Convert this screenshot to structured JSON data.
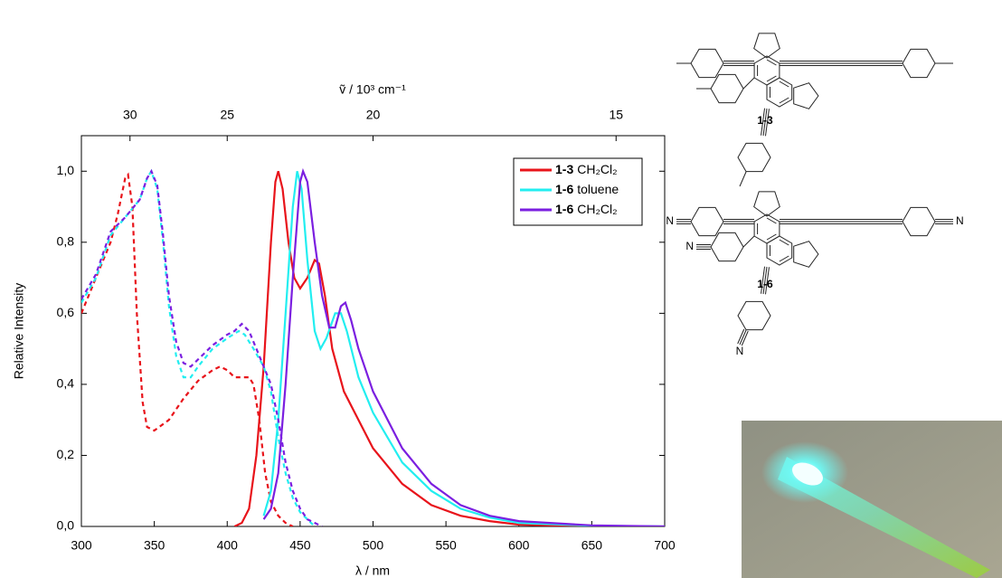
{
  "chart_data": {
    "type": "line",
    "x_label": "λ / nm",
    "y_label": "Relative Intensity",
    "x2_label": "ṽ / 10³ cm⁻¹",
    "xlim": [
      300,
      700
    ],
    "ylim": [
      0,
      1.1
    ],
    "xticks": [
      300,
      350,
      400,
      450,
      500,
      550,
      600,
      650,
      700
    ],
    "yticks": [
      {
        "value": 0,
        "label": "0,0"
      },
      {
        "value": 0.2,
        "label": "0,2"
      },
      {
        "value": 0.4,
        "label": "0,4"
      },
      {
        "value": 0.6,
        "label": "0,6"
      },
      {
        "value": 0.8,
        "label": "0,8"
      },
      {
        "value": 1.0,
        "label": "1,0"
      }
    ],
    "x2ticks": [
      30,
      25,
      20,
      15
    ],
    "series": [
      {
        "name": "1-3",
        "solvent": "CH₂Cl₂",
        "color": "#e8141b",
        "absorption": {
          "x": [
            300,
            310,
            320,
            325,
            330,
            332,
            335,
            338,
            342,
            345,
            350,
            360,
            370,
            380,
            390,
            395,
            400,
            405,
            410,
            415,
            418,
            422,
            426,
            430,
            435,
            440,
            445
          ],
          "values": [
            0.6,
            0.7,
            0.8,
            0.88,
            0.98,
            0.99,
            0.9,
            0.6,
            0.35,
            0.28,
            0.27,
            0.3,
            0.36,
            0.41,
            0.44,
            0.45,
            0.44,
            0.42,
            0.42,
            0.42,
            0.4,
            0.3,
            0.15,
            0.07,
            0.03,
            0.01,
            0.0
          ]
        },
        "emission": {
          "x": [
            405,
            410,
            415,
            420,
            425,
            430,
            433,
            435,
            438,
            442,
            446,
            450,
            455,
            460,
            463,
            467,
            472,
            480,
            490,
            500,
            520,
            540,
            560,
            580,
            600,
            650,
            700
          ],
          "values": [
            0.0,
            0.01,
            0.05,
            0.2,
            0.45,
            0.8,
            0.97,
            1.0,
            0.95,
            0.8,
            0.7,
            0.67,
            0.7,
            0.75,
            0.74,
            0.65,
            0.5,
            0.38,
            0.3,
            0.22,
            0.12,
            0.06,
            0.03,
            0.015,
            0.005,
            0.0,
            0.0
          ]
        }
      },
      {
        "name": "1-6",
        "solvent": "toluene",
        "color": "#22eef0",
        "absorption": {
          "x": [
            300,
            310,
            320,
            330,
            340,
            345,
            348,
            352,
            356,
            360,
            365,
            370,
            375,
            380,
            390,
            400,
            408,
            412,
            418,
            425,
            430,
            435,
            440,
            445,
            450,
            455,
            460
          ],
          "values": [
            0.63,
            0.7,
            0.82,
            0.87,
            0.92,
            0.98,
            1.0,
            0.95,
            0.8,
            0.62,
            0.48,
            0.42,
            0.42,
            0.45,
            0.5,
            0.53,
            0.55,
            0.54,
            0.5,
            0.45,
            0.38,
            0.25,
            0.15,
            0.08,
            0.04,
            0.02,
            0.0
          ]
        },
        "emission": {
          "x": [
            425,
            430,
            435,
            440,
            445,
            448,
            451,
            455,
            460,
            464,
            468,
            474,
            478,
            482,
            490,
            500,
            520,
            540,
            560,
            580,
            600,
            650,
            700
          ],
          "values": [
            0.03,
            0.1,
            0.3,
            0.6,
            0.9,
            1.0,
            0.95,
            0.75,
            0.55,
            0.5,
            0.53,
            0.6,
            0.6,
            0.55,
            0.42,
            0.32,
            0.18,
            0.1,
            0.05,
            0.025,
            0.01,
            0.002,
            0.0
          ]
        }
      },
      {
        "name": "1-6",
        "solvent": "CH₂Cl₂",
        "color": "#7b1fe0",
        "absorption": {
          "x": [
            300,
            310,
            320,
            330,
            340,
            345,
            348,
            352,
            356,
            360,
            365,
            370,
            375,
            380,
            390,
            400,
            405,
            410,
            415,
            420,
            425,
            430,
            435,
            440,
            445,
            450,
            455,
            465
          ],
          "values": [
            0.64,
            0.71,
            0.83,
            0.87,
            0.92,
            0.98,
            1.0,
            0.96,
            0.82,
            0.65,
            0.52,
            0.46,
            0.45,
            0.47,
            0.51,
            0.54,
            0.55,
            0.57,
            0.55,
            0.5,
            0.45,
            0.4,
            0.3,
            0.18,
            0.1,
            0.05,
            0.02,
            0.0
          ]
        },
        "emission": {
          "x": [
            425,
            430,
            435,
            440,
            445,
            450,
            452,
            455,
            460,
            465,
            470,
            474,
            478,
            481,
            485,
            490,
            500,
            520,
            540,
            560,
            580,
            600,
            650,
            700
          ],
          "values": [
            0.02,
            0.05,
            0.15,
            0.4,
            0.7,
            0.97,
            1.0,
            0.97,
            0.8,
            0.65,
            0.56,
            0.56,
            0.62,
            0.63,
            0.58,
            0.5,
            0.38,
            0.22,
            0.12,
            0.06,
            0.03,
            0.015,
            0.003,
            0.0
          ]
        }
      }
    ]
  },
  "structures": [
    {
      "label": "1-3"
    },
    {
      "label": "1-6",
      "atoms": [
        "N",
        "N",
        "N",
        "N"
      ]
    }
  ]
}
